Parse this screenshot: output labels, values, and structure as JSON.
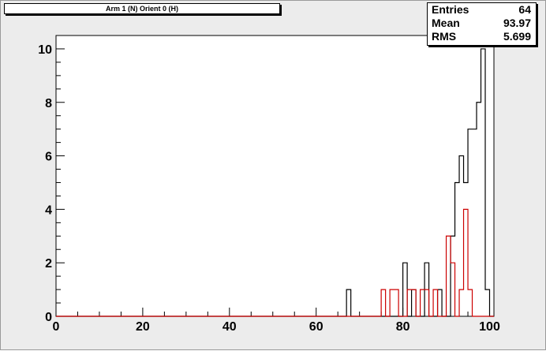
{
  "title": "Arm 1 (N) Orient 0 (H)",
  "stats": {
    "entries_label": "Entries",
    "entries_value": "64",
    "mean_label": "Mean",
    "mean_value": "93.97",
    "rms_label": "RMS",
    "rms_value": "5.699"
  },
  "colors": {
    "series_black": "#000000",
    "series_red": "#cc0000",
    "frame_bg": "#ececec",
    "pad_bg": "#ffffff"
  },
  "chart_data": {
    "type": "histogram",
    "bin_width": 1,
    "xlim": [
      0,
      101
    ],
    "ylim": [
      0,
      10.5
    ],
    "x_ticks": [
      0,
      20,
      40,
      60,
      80,
      100
    ],
    "y_ticks": [
      0,
      2,
      4,
      6,
      8,
      10
    ],
    "grid": false,
    "series": [
      {
        "color": "#000000",
        "bins": [
          {
            "x": 67,
            "y": 1
          },
          {
            "x": 80,
            "y": 2
          },
          {
            "x": 82,
            "y": 1
          },
          {
            "x": 85,
            "y": 2
          },
          {
            "x": 88,
            "y": 1
          },
          {
            "x": 91,
            "y": 3
          },
          {
            "x": 92,
            "y": 5
          },
          {
            "x": 93,
            "y": 6
          },
          {
            "x": 94,
            "y": 5
          },
          {
            "x": 95,
            "y": 7
          },
          {
            "x": 96,
            "y": 7
          },
          {
            "x": 97,
            "y": 8
          },
          {
            "x": 98,
            "y": 10
          },
          {
            "x": 99,
            "y": 1
          }
        ]
      },
      {
        "color": "#cc0000",
        "bins": [
          {
            "x": 75,
            "y": 1
          },
          {
            "x": 77,
            "y": 1
          },
          {
            "x": 78,
            "y": 1
          },
          {
            "x": 81,
            "y": 1
          },
          {
            "x": 82,
            "y": 1
          },
          {
            "x": 84,
            "y": 1
          },
          {
            "x": 85,
            "y": 1
          },
          {
            "x": 87,
            "y": 1
          },
          {
            "x": 90,
            "y": 3
          },
          {
            "x": 91,
            "y": 2
          },
          {
            "x": 93,
            "y": 1
          },
          {
            "x": 94,
            "y": 4
          },
          {
            "x": 95,
            "y": 1
          }
        ]
      }
    ]
  }
}
